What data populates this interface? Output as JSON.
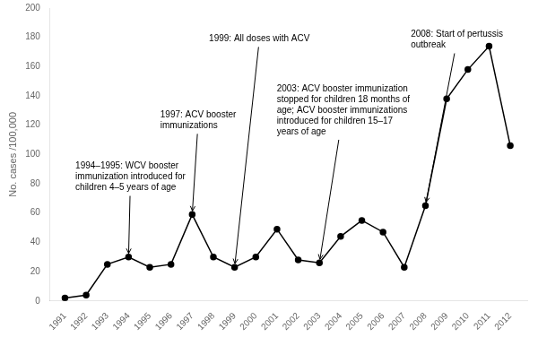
{
  "chart_data": {
    "type": "line",
    "x": [
      1991,
      1992,
      1993,
      1994,
      1995,
      1996,
      1997,
      1998,
      1999,
      2000,
      2001,
      2002,
      2003,
      2004,
      2005,
      2006,
      2007,
      2008,
      2009,
      2010,
      2011,
      2012
    ],
    "values": [
      2,
      4,
      25,
      30,
      23,
      25,
      59,
      30,
      23,
      30,
      49,
      28,
      26,
      44,
      55,
      47,
      23,
      65,
      138,
      158,
      174,
      106
    ],
    "color": "#000000",
    "marker": "circle",
    "ylabel": "No. cases /100,000",
    "xlim": [
      1990.3,
      2012.8
    ],
    "xticks": [
      1991,
      1992,
      1993,
      1994,
      1995,
      1996,
      1997,
      1998,
      1999,
      2000,
      2001,
      2002,
      2003,
      2004,
      2005,
      2006,
      2007,
      2008,
      2009,
      2010,
      2011,
      2012
    ],
    "ylim": [
      0,
      200
    ],
    "yticks": [
      0,
      20,
      40,
      60,
      80,
      100,
      120,
      140,
      160,
      180,
      200
    ],
    "grid": false,
    "annotations": [
      {
        "text": "1994–1995: WCV booster\nimmunization introduced for\nchildren 4–5 years of age",
        "x": 1994,
        "y": 30
      },
      {
        "text": "1997: ACV booster\nimmunizations",
        "x": 1997,
        "y": 59
      },
      {
        "text": "1999: All doses with ACV",
        "x": 1999,
        "y": 23
      },
      {
        "text": "2003: ACV booster immunization\nstopped for children 18 months of\nage; ACV booster immunizations\nintroduced for children 15–17\nyears of age",
        "x": 2003,
        "y": 26
      },
      {
        "text": "2008: Start of pertussis\noutbreak",
        "x": 2008,
        "y": 65
      }
    ]
  }
}
